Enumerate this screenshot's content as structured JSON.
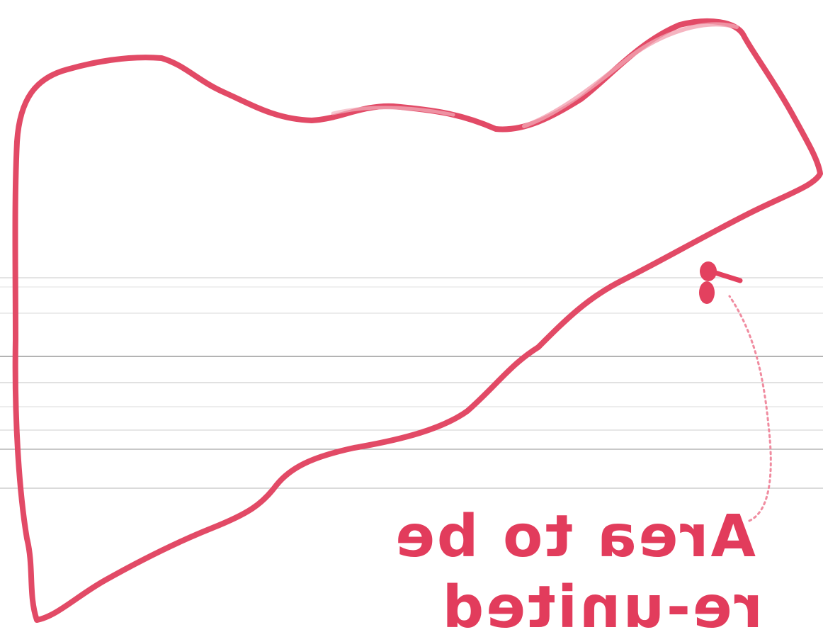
{
  "annotation": {
    "line1": "Area to be",
    "line2": "re-united",
    "mirrored": true
  },
  "colors": {
    "ink": "#e0405e",
    "ink_light": "#ef8a9c",
    "paper": "#ffffff",
    "ruled_line": "#d4d4d4",
    "ruled_line_dark": "#8c8c8c"
  },
  "icons": {
    "outline": "closed-region-outline",
    "arrow": "curved-arrow-up",
    "marker": "ink-blot-marker"
  }
}
